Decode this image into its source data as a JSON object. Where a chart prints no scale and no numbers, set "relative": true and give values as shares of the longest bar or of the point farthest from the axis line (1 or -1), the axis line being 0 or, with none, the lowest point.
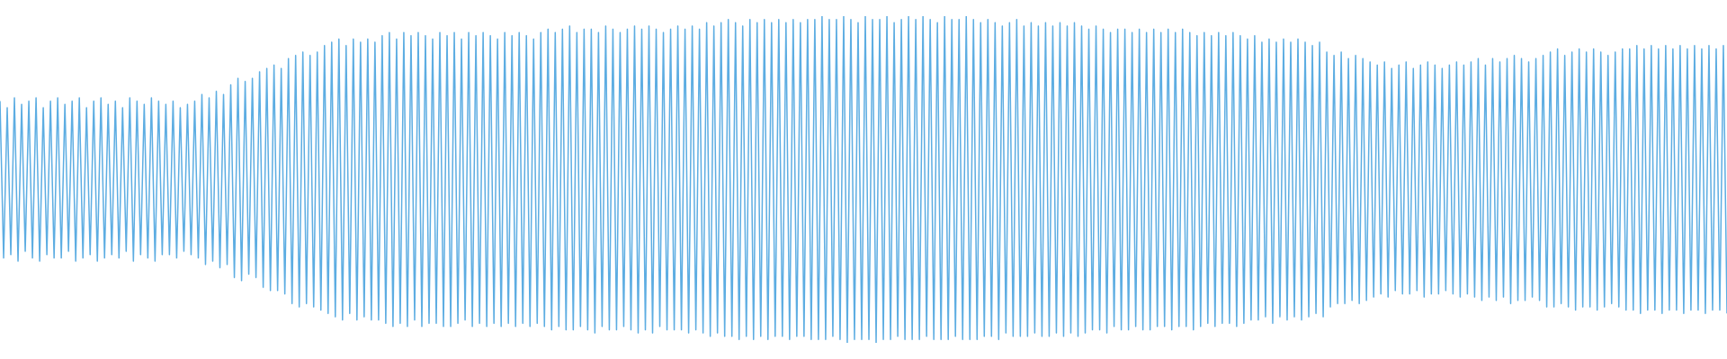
{
  "chart_data": {
    "type": "line",
    "relative": true,
    "color": "#5dade2",
    "categories": [
      null,
      null,
      null,
      null,
      null,
      null,
      null,
      null,
      null,
      null,
      null,
      null,
      null,
      null,
      null,
      null,
      null,
      null,
      null,
      null,
      null,
      null,
      null,
      null,
      null,
      null,
      null,
      null,
      null,
      null,
      null,
      null,
      null,
      null,
      null,
      null,
      null,
      null,
      null,
      null,
      null,
      null,
      null,
      null,
      null,
      null,
      null,
      null,
      null,
      null,
      null,
      null,
      null,
      null,
      null,
      null,
      null,
      null,
      null,
      null,
      null,
      null,
      null,
      null,
      null,
      null,
      null,
      null,
      null,
      null,
      null,
      null,
      null,
      null,
      null,
      null,
      null,
      null,
      null,
      null,
      null,
      null,
      null,
      null,
      null,
      null,
      null,
      null,
      null,
      null,
      null,
      null,
      null,
      null,
      null,
      null,
      null,
      null,
      null,
      null,
      null,
      null,
      null,
      null,
      null,
      null,
      null,
      null,
      null,
      null,
      null,
      null,
      null,
      null,
      null,
      null,
      null,
      null,
      null,
      null,
      null,
      null,
      null,
      null,
      null,
      null,
      null,
      null,
      null,
      null,
      null,
      null,
      null,
      null,
      null,
      null,
      null,
      null,
      null,
      null,
      null,
      null,
      null,
      null,
      null,
      null,
      null,
      null,
      null,
      null,
      null,
      null,
      null,
      null,
      null,
      null,
      null,
      null,
      null,
      null,
      null,
      null,
      null,
      null,
      null,
      null,
      null,
      null,
      null,
      null,
      null,
      null,
      null,
      null,
      null,
      null,
      null,
      null,
      null,
      null,
      null,
      null,
      null,
      null,
      null,
      null,
      null,
      null,
      null,
      null,
      null,
      null,
      null,
      null,
      null,
      null,
      null,
      null,
      null,
      null,
      null,
      null,
      null,
      null,
      null,
      null,
      null,
      null,
      null,
      null,
      null,
      null,
      null,
      null,
      null,
      null,
      null,
      null,
      null,
      null,
      null,
      null,
      null,
      null,
      null,
      null,
      null,
      null,
      null,
      null,
      null,
      null,
      null,
      null,
      null,
      null,
      null,
      null,
      null,
      null,
      null,
      null,
      null,
      null,
      null,
      null,
      null,
      null,
      null,
      null,
      null,
      null,
      null,
      null,
      null,
      null,
      null,
      null,
      null,
      null,
      null,
      null,
      null,
      null,
      null,
      null,
      null,
      null,
      null,
      null,
      null,
      null,
      null,
      null,
      null,
      null,
      null,
      null,
      null,
      null,
      null,
      null,
      null,
      null,
      null,
      null,
      null,
      null,
      null,
      null,
      null,
      null,
      null,
      null,
      null,
      null,
      null,
      null,
      null,
      null,
      null,
      null,
      null,
      null,
      null,
      null,
      null,
      null,
      null,
      null,
      null,
      null,
      null,
      null,
      null,
      null,
      null,
      null,
      null,
      null,
      null,
      null,
      null,
      null,
      null,
      null,
      null,
      null,
      null,
      null,
      null,
      null,
      null,
      null,
      null,
      null,
      null,
      null,
      null,
      null,
      null,
      null,
      null,
      null,
      null,
      null,
      null,
      null,
      null,
      null,
      null,
      null,
      null,
      null,
      null,
      null,
      null,
      null,
      null,
      null,
      null,
      null,
      null,
      null,
      null,
      null,
      null,
      null,
      null,
      null,
      null,
      null,
      null,
      null,
      null,
      null,
      null,
      null,
      null,
      null,
      null,
      null,
      null,
      null,
      null,
      null,
      null,
      null,
      null,
      null,
      null,
      null,
      null,
      null,
      null,
      null,
      null,
      null,
      null,
      null,
      null,
      null,
      null,
      null,
      null,
      null,
      null,
      null,
      null,
      null,
      null,
      null,
      null,
      null,
      null,
      null,
      null,
      null,
      null,
      null,
      null,
      null,
      null,
      null,
      null,
      null,
      null,
      null,
      null,
      null,
      null,
      null,
      null,
      null,
      null,
      null,
      null,
      null,
      null,
      null,
      null,
      null,
      null,
      null,
      null,
      null,
      null,
      null,
      null,
      null,
      null,
      null,
      null,
      null,
      null,
      null,
      null,
      null,
      null,
      null,
      null,
      null,
      null,
      null,
      null,
      null,
      null,
      null,
      null,
      null,
      null,
      null,
      null,
      null,
      null,
      null,
      null,
      null,
      null,
      null
    ],
    "values": [
      0.74,
      0.26,
      0.72,
      0.27,
      0.75,
      0.25,
      0.73,
      0.28,
      0.74,
      0.26,
      0.75,
      0.25,
      0.72,
      0.27,
      0.74,
      0.26,
      0.75,
      0.26,
      0.73,
      0.28,
      0.74,
      0.25,
      0.75,
      0.26,
      0.72,
      0.27,
      0.74,
      0.25,
      0.75,
      0.26,
      0.73,
      0.27,
      0.74,
      0.26,
      0.72,
      0.28,
      0.75,
      0.25,
      0.74,
      0.27,
      0.73,
      0.26,
      0.75,
      0.25,
      0.74,
      0.27,
      0.73,
      0.27,
      0.74,
      0.26,
      0.72,
      0.28,
      0.73,
      0.27,
      0.74,
      0.26,
      0.76,
      0.24,
      0.75,
      0.25,
      0.77,
      0.23,
      0.76,
      0.24,
      0.79,
      0.2,
      0.81,
      0.19,
      0.8,
      0.21,
      0.81,
      0.2,
      0.83,
      0.17,
      0.84,
      0.16,
      0.85,
      0.16,
      0.84,
      0.15,
      0.87,
      0.12,
      0.88,
      0.11,
      0.89,
      0.12,
      0.88,
      0.11,
      0.89,
      0.1,
      0.91,
      0.09,
      0.92,
      0.08,
      0.93,
      0.07,
      0.91,
      0.09,
      0.93,
      0.07,
      0.92,
      0.08,
      0.93,
      0.07,
      0.92,
      0.07,
      0.94,
      0.06,
      0.95,
      0.05,
      0.93,
      0.06,
      0.95,
      0.05,
      0.94,
      0.07,
      0.95,
      0.05,
      0.94,
      0.06,
      0.93,
      0.06,
      0.95,
      0.05,
      0.94,
      0.05,
      0.95,
      0.06,
      0.93,
      0.07,
      0.95,
      0.05,
      0.94,
      0.06,
      0.95,
      0.05,
      0.94,
      0.06,
      0.93,
      0.05,
      0.95,
      0.06,
      0.94,
      0.05,
      0.95,
      0.06,
      0.94,
      0.05,
      0.93,
      0.06,
      0.95,
      0.05,
      0.96,
      0.04,
      0.95,
      0.05,
      0.96,
      0.04,
      0.97,
      0.04,
      0.95,
      0.05,
      0.96,
      0.04,
      0.96,
      0.03,
      0.95,
      0.05,
      0.97,
      0.04,
      0.96,
      0.04,
      0.95,
      0.05,
      0.96,
      0.04,
      0.97,
      0.03,
      0.96,
      0.04,
      0.97,
      0.03,
      0.96,
      0.05,
      0.95,
      0.04,
      0.96,
      0.04,
      0.97,
      0.04,
      0.96,
      0.03,
      0.97,
      0.04,
      0.96,
      0.03,
      0.98,
      0.02,
      0.97,
      0.03,
      0.98,
      0.02,
      0.99,
      0.02,
      0.98,
      0.01,
      0.97,
      0.02,
      0.99,
      0.01,
      0.98,
      0.02,
      0.99,
      0.01,
      0.98,
      0.02,
      0.99,
      0.02,
      0.98,
      0.01,
      0.99,
      0.02,
      0.98,
      0.02,
      0.99,
      0.01,
      0.99,
      0.01,
      1,
      0.01,
      0.99,
      0.02,
      0.99,
      0.01,
      1,
      0,
      0.99,
      0.01,
      0.98,
      0.01,
      1,
      0.01,
      0.99,
      0,
      0.99,
      0.01,
      1,
      0.01,
      0.98,
      0.02,
      0.99,
      0.01,
      1,
      0.01,
      0.99,
      0.01,
      1,
      0.02,
      0.99,
      0.01,
      0.98,
      0.01,
      1,
      0.01,
      0.99,
      0.02,
      0.99,
      0.01,
      1,
      0.01,
      0.99,
      0.01,
      0.98,
      0.02,
      0.99,
      0.02,
      0.98,
      0.01,
      0.97,
      0.03,
      0.98,
      0.02,
      0.99,
      0.02,
      0.97,
      0.02,
      0.98,
      0.03,
      0.97,
      0.02,
      0.98,
      0.02,
      0.97,
      0.03,
      0.98,
      0.02,
      0.97,
      0.03,
      0.98,
      0.02,
      0.97,
      0.03,
      0.96,
      0.04,
      0.97,
      0.04,
      0.96,
      0.03,
      0.95,
      0.05,
      0.96,
      0.04,
      0.96,
      0.04,
      0.95,
      0.05,
      0.96,
      0.04,
      0.95,
      0.04,
      0.96,
      0.05,
      0.95,
      0.05,
      0.96,
      0.04,
      0.95,
      0.05,
      0.96,
      0.05,
      0.95,
      0.04,
      0.94,
      0.05,
      0.95,
      0.06,
      0.94,
      0.05,
      0.95,
      0.06,
      0.94,
      0.06,
      0.95,
      0.05,
      0.94,
      0.06,
      0.93,
      0.07,
      0.94,
      0.07,
      0.92,
      0.08,
      0.93,
      0.06,
      0.92,
      0.08,
      0.93,
      0.07,
      0.92,
      0.08,
      0.93,
      0.07,
      0.92,
      0.08,
      0.91,
      0.09,
      0.92,
      0.08,
      0.89,
      0.11,
      0.88,
      0.12,
      0.89,
      0.12,
      0.87,
      0.13,
      0.88,
      0.12,
      0.87,
      0.13,
      0.86,
      0.14,
      0.85,
      0.15,
      0.86,
      0.14,
      0.84,
      0.16,
      0.85,
      0.15,
      0.86,
      0.15,
      0.84,
      0.16,
      0.85,
      0.14,
      0.86,
      0.15,
      0.85,
      0.15,
      0.84,
      0.16,
      0.85,
      0.15,
      0.86,
      0.14,
      0.85,
      0.15,
      0.86,
      0.14,
      0.87,
      0.13,
      0.85,
      0.14,
      0.87,
      0.13,
      0.86,
      0.14,
      0.87,
      0.12,
      0.88,
      0.13,
      0.87,
      0.13,
      0.86,
      0.14,
      0.87,
      0.13,
      0.88,
      0.11,
      0.89,
      0.11,
      0.9,
      0.12,
      0.88,
      0.11,
      0.89,
      0.1,
      0.9,
      0.11,
      0.89,
      0.11,
      0.9,
      0.1,
      0.89,
      0.11,
      0.88,
      0.12,
      0.89,
      0.11,
      0.9,
      0.1,
      0.9,
      0.1,
      0.91,
      0.09,
      0.9,
      0.1,
      0.91,
      0.1,
      0.9,
      0.09,
      0.91,
      0.1,
      0.9,
      0.1,
      0.91,
      0.09,
      0.9,
      0.1,
      0.91,
      0.1,
      0.9,
      0.09,
      0.91,
      0.1,
      0.9,
      0.1,
      0.91,
      0.09
    ]
  }
}
